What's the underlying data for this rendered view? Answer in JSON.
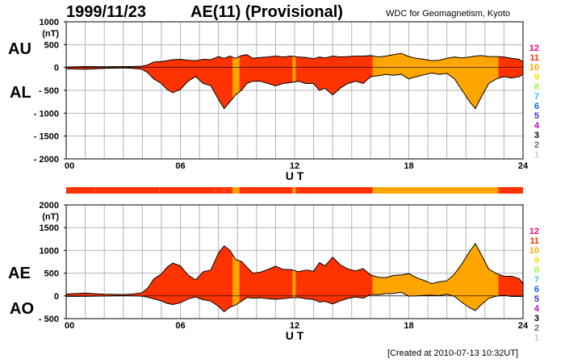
{
  "header": {
    "date": "1999/11/23",
    "title": "AE(11) (Provisional)",
    "source": "WDC for Geomagnetism, Kyoto"
  },
  "footer": {
    "created": "[Created at 2010-07-13 10:32UT]"
  },
  "colors": {
    "11": "#ff3300",
    "10": "#ffa500",
    "outline": "#000000",
    "grid": "#b3b3b3"
  },
  "legend": [
    {
      "label": "12",
      "color": "#ff0066"
    },
    {
      "label": "11",
      "color": "#ff3300"
    },
    {
      "label": "10",
      "color": "#ffa500"
    },
    {
      "label": "9",
      "color": "#e6e600"
    },
    {
      "label": "8",
      "color": "#99ff33"
    },
    {
      "label": "7",
      "color": "#33cccc"
    },
    {
      "label": "6",
      "color": "#0066ff"
    },
    {
      "label": "5",
      "color": "#3333cc"
    },
    {
      "label": "4",
      "color": "#cc00cc"
    },
    {
      "label": "3",
      "color": "#000000"
    },
    {
      "label": "2",
      "color": "#666666"
    },
    {
      "label": "1",
      "color": "#cccccc"
    }
  ],
  "chart_data": [
    {
      "type": "area",
      "name": "AU/AL",
      "labels": {
        "upper": "AU",
        "lower": "AL"
      },
      "xlabel": "U T",
      "xlim": [
        0,
        24
      ],
      "ylim": [
        -2000,
        1000
      ],
      "yticks": [
        "1000",
        "(nT)",
        "500",
        "0",
        "- 500",
        "- 1000",
        "- 1500",
        "- 2000"
      ],
      "ytick_values": [
        1000,
        750,
        500,
        0,
        -500,
        -1000,
        -1500,
        -2000
      ],
      "xticks": [
        "00",
        "06",
        "12",
        "18",
        "24"
      ],
      "x": [
        0,
        1,
        2,
        3,
        3.5,
        4,
        4.3,
        4.6,
        5,
        5.3,
        5.6,
        6,
        6.4,
        6.8,
        7.2,
        7.6,
        8,
        8.3,
        8.6,
        8.9,
        9.2,
        9.5,
        9.8,
        10.2,
        10.6,
        11,
        11.4,
        11.8,
        12.2,
        12.6,
        13,
        13.3,
        13.6,
        14,
        14.4,
        14.8,
        15.2,
        15.6,
        16,
        16.4,
        16.8,
        17.2,
        17.6,
        18,
        18.4,
        18.8,
        19.2,
        19.6,
        20,
        20.4,
        20.8,
        21.2,
        21.5,
        21.8,
        22.2,
        22.6,
        23,
        23.4,
        23.8,
        24
      ],
      "au": [
        10,
        20,
        15,
        20,
        20,
        30,
        60,
        120,
        130,
        150,
        170,
        180,
        160,
        150,
        180,
        170,
        240,
        200,
        250,
        200,
        260,
        280,
        200,
        220,
        230,
        250,
        230,
        250,
        230,
        220,
        190,
        230,
        210,
        250,
        230,
        240,
        250,
        250,
        260,
        230,
        250,
        280,
        310,
        240,
        200,
        180,
        150,
        160,
        200,
        230,
        210,
        230,
        250,
        260,
        240,
        240,
        230,
        200,
        180,
        120
      ],
      "al": [
        -30,
        -40,
        -20,
        -10,
        -20,
        -40,
        -120,
        -250,
        -350,
        -480,
        -550,
        -480,
        -300,
        -200,
        -350,
        -400,
        -700,
        -900,
        -750,
        -600,
        -500,
        -350,
        -300,
        -300,
        -350,
        -400,
        -350,
        -330,
        -300,
        -350,
        -350,
        -500,
        -450,
        -600,
        -450,
        -350,
        -300,
        -350,
        -200,
        -180,
        -150,
        -170,
        -150,
        -250,
        -200,
        -160,
        -120,
        -150,
        -130,
        -250,
        -500,
        -750,
        -900,
        -650,
        -350,
        -250,
        -200,
        -230,
        -200,
        -150
      ]
    },
    {
      "type": "area",
      "name": "AE/AO",
      "labels": {
        "upper": "AE",
        "lower": "AO"
      },
      "xlabel": "U T",
      "xlim": [
        0,
        24
      ],
      "ylim": [
        -500,
        2000
      ],
      "yticks": [
        "2000",
        "(nT)",
        "1500",
        "1000",
        "500",
        "0",
        "- 500"
      ],
      "ytick_values": [
        2000,
        1750,
        1500,
        1000,
        500,
        0,
        -500
      ],
      "xticks": [
        "00",
        "06",
        "12",
        "18",
        "24"
      ],
      "x": [
        0,
        1,
        2,
        3,
        3.5,
        4,
        4.3,
        4.6,
        5,
        5.3,
        5.6,
        6,
        6.4,
        6.8,
        7.2,
        7.6,
        8,
        8.3,
        8.6,
        8.9,
        9.2,
        9.5,
        9.8,
        10.2,
        10.6,
        11,
        11.4,
        11.8,
        12.2,
        12.6,
        13,
        13.3,
        13.6,
        14,
        14.4,
        14.8,
        15.2,
        15.6,
        16,
        16.4,
        16.8,
        17.2,
        17.6,
        18,
        18.4,
        18.8,
        19.2,
        19.6,
        20,
        20.4,
        20.8,
        21.2,
        21.5,
        21.8,
        22.2,
        22.6,
        23,
        23.4,
        23.8,
        24
      ],
      "ae": [
        40,
        60,
        35,
        30,
        40,
        70,
        180,
        370,
        480,
        630,
        720,
        660,
        460,
        350,
        530,
        570,
        940,
        1100,
        1000,
        800,
        760,
        630,
        500,
        520,
        580,
        650,
        580,
        580,
        530,
        570,
        540,
        730,
        660,
        850,
        680,
        590,
        550,
        600,
        460,
        410,
        400,
        450,
        460,
        490,
        400,
        340,
        270,
        310,
        330,
        480,
        710,
        980,
        1150,
        910,
        590,
        490,
        430,
        430,
        380,
        270
      ],
      "ao": [
        -10,
        -10,
        -3,
        5,
        0,
        -5,
        -30,
        -65,
        -110,
        -165,
        -190,
        -150,
        -70,
        -25,
        -85,
        -115,
        -230,
        -350,
        -250,
        -200,
        -120,
        -35,
        -50,
        -40,
        -60,
        -75,
        -60,
        -40,
        -35,
        -65,
        -80,
        -135,
        -120,
        -175,
        -110,
        -55,
        -25,
        -50,
        30,
        25,
        50,
        55,
        80,
        -5,
        0,
        10,
        15,
        5,
        35,
        -10,
        -145,
        -260,
        -325,
        -195,
        -55,
        -5,
        15,
        -15,
        -10,
        -15
      ]
    }
  ],
  "activity_bands": [
    {
      "from": 0,
      "to": 8.75,
      "level": "11"
    },
    {
      "from": 8.75,
      "to": 9.1,
      "level": "10"
    },
    {
      "from": 9.1,
      "to": 11.9,
      "level": "11"
    },
    {
      "from": 11.9,
      "to": 12.05,
      "level": "10"
    },
    {
      "from": 12.05,
      "to": 16.1,
      "level": "11"
    },
    {
      "from": 16.1,
      "to": 22.7,
      "level": "10"
    },
    {
      "from": 22.7,
      "to": 24,
      "level": "11"
    }
  ]
}
